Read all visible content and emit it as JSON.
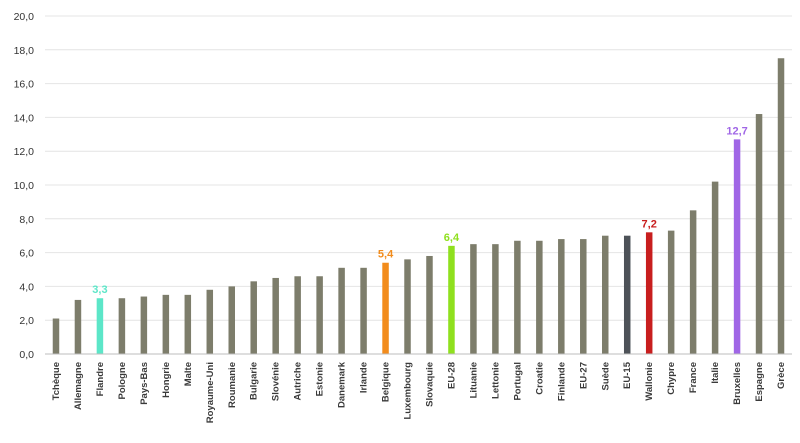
{
  "chart_data": {
    "type": "bar",
    "title": "",
    "xlabel": "",
    "ylabel": "",
    "ylim": [
      0,
      20
    ],
    "yticks": [
      0,
      2,
      4,
      6,
      8,
      10,
      12,
      14,
      16,
      18,
      20
    ],
    "ytick_labels": [
      "0,0",
      "2,0",
      "4,0",
      "6,0",
      "8,0",
      "10,0",
      "12,0",
      "14,0",
      "16,0",
      "18,0",
      "20,0"
    ],
    "grid": true,
    "legend": "none",
    "default_color": "#7d7d6b",
    "categories": [
      "Tchèque",
      "Allemagne",
      "Flandre",
      "Pologne",
      "Pays-Bas",
      "Hongrie",
      "Malte",
      "Royaume-Uni",
      "Roumanie",
      "Bulgarie",
      "Slovénie",
      "Autriche",
      "Estonie",
      "Danemark",
      "Irlande",
      "Belgique",
      "Luxembourg",
      "Slovaquie",
      "EU-28",
      "Lituanie",
      "Lettonie",
      "Portugal",
      "Croatie",
      "Finlande",
      "EU-27",
      "Suède",
      "EU-15",
      "Wallonie",
      "Chypre",
      "France",
      "Italie",
      "Bruxelles",
      "Espagne",
      "Grèce"
    ],
    "values": [
      2.1,
      3.2,
      3.3,
      3.3,
      3.4,
      3.5,
      3.5,
      3.8,
      4.0,
      4.3,
      4.5,
      4.6,
      4.6,
      5.1,
      5.1,
      5.4,
      5.6,
      5.8,
      6.4,
      6.5,
      6.5,
      6.7,
      6.7,
      6.8,
      6.8,
      7.0,
      7.0,
      7.2,
      7.3,
      8.5,
      10.2,
      12.7,
      14.2,
      17.5
    ],
    "highlights": [
      {
        "category": "Flandre",
        "color": "#5ce6c8",
        "label": "3,3"
      },
      {
        "category": "Belgique",
        "color": "#f28c1c",
        "label": "5,4"
      },
      {
        "category": "EU-28",
        "color": "#8fe01e",
        "label": "6,4"
      },
      {
        "category": "EU-15",
        "color": "#4d5258",
        "label": ""
      },
      {
        "category": "Wallonie",
        "color": "#c81e1e",
        "label": "7,2"
      },
      {
        "category": "Bruxelles",
        "color": "#a066e6",
        "label": "12,7"
      }
    ]
  }
}
